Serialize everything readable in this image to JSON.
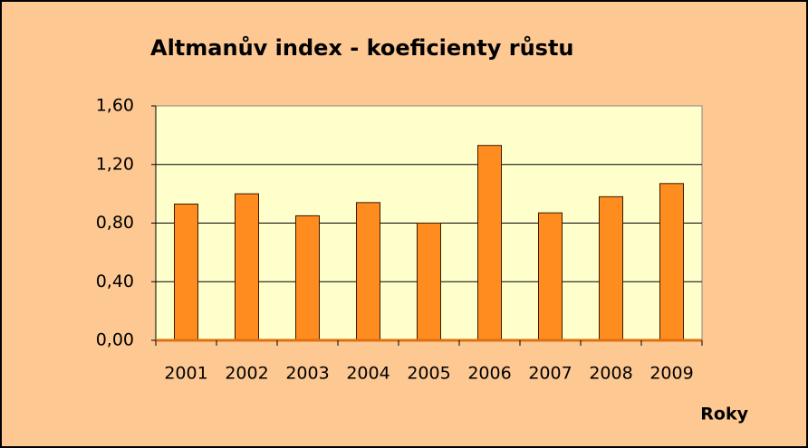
{
  "chart_data": {
    "type": "bar",
    "title": "Altmanův index - koeficienty růstu",
    "x_label": "Roky",
    "categories": [
      "2001",
      "2002",
      "2003",
      "2004",
      "2005",
      "2006",
      "2007",
      "2008",
      "2009"
    ],
    "values": [
      0.93,
      1.0,
      0.85,
      0.94,
      0.8,
      1.33,
      0.87,
      0.98,
      1.07
    ],
    "color": "#ff8c1f",
    "ylim": [
      0,
      1.6
    ],
    "yticks": [
      {
        "value": 0,
        "label": "0,00"
      },
      {
        "value": 0.4,
        "label": "0,40"
      },
      {
        "value": 0.8,
        "label": "0,80"
      },
      {
        "value": 1.2,
        "label": "1,20"
      },
      {
        "value": 1.6,
        "label": "1,60"
      }
    ],
    "grid": true
  }
}
